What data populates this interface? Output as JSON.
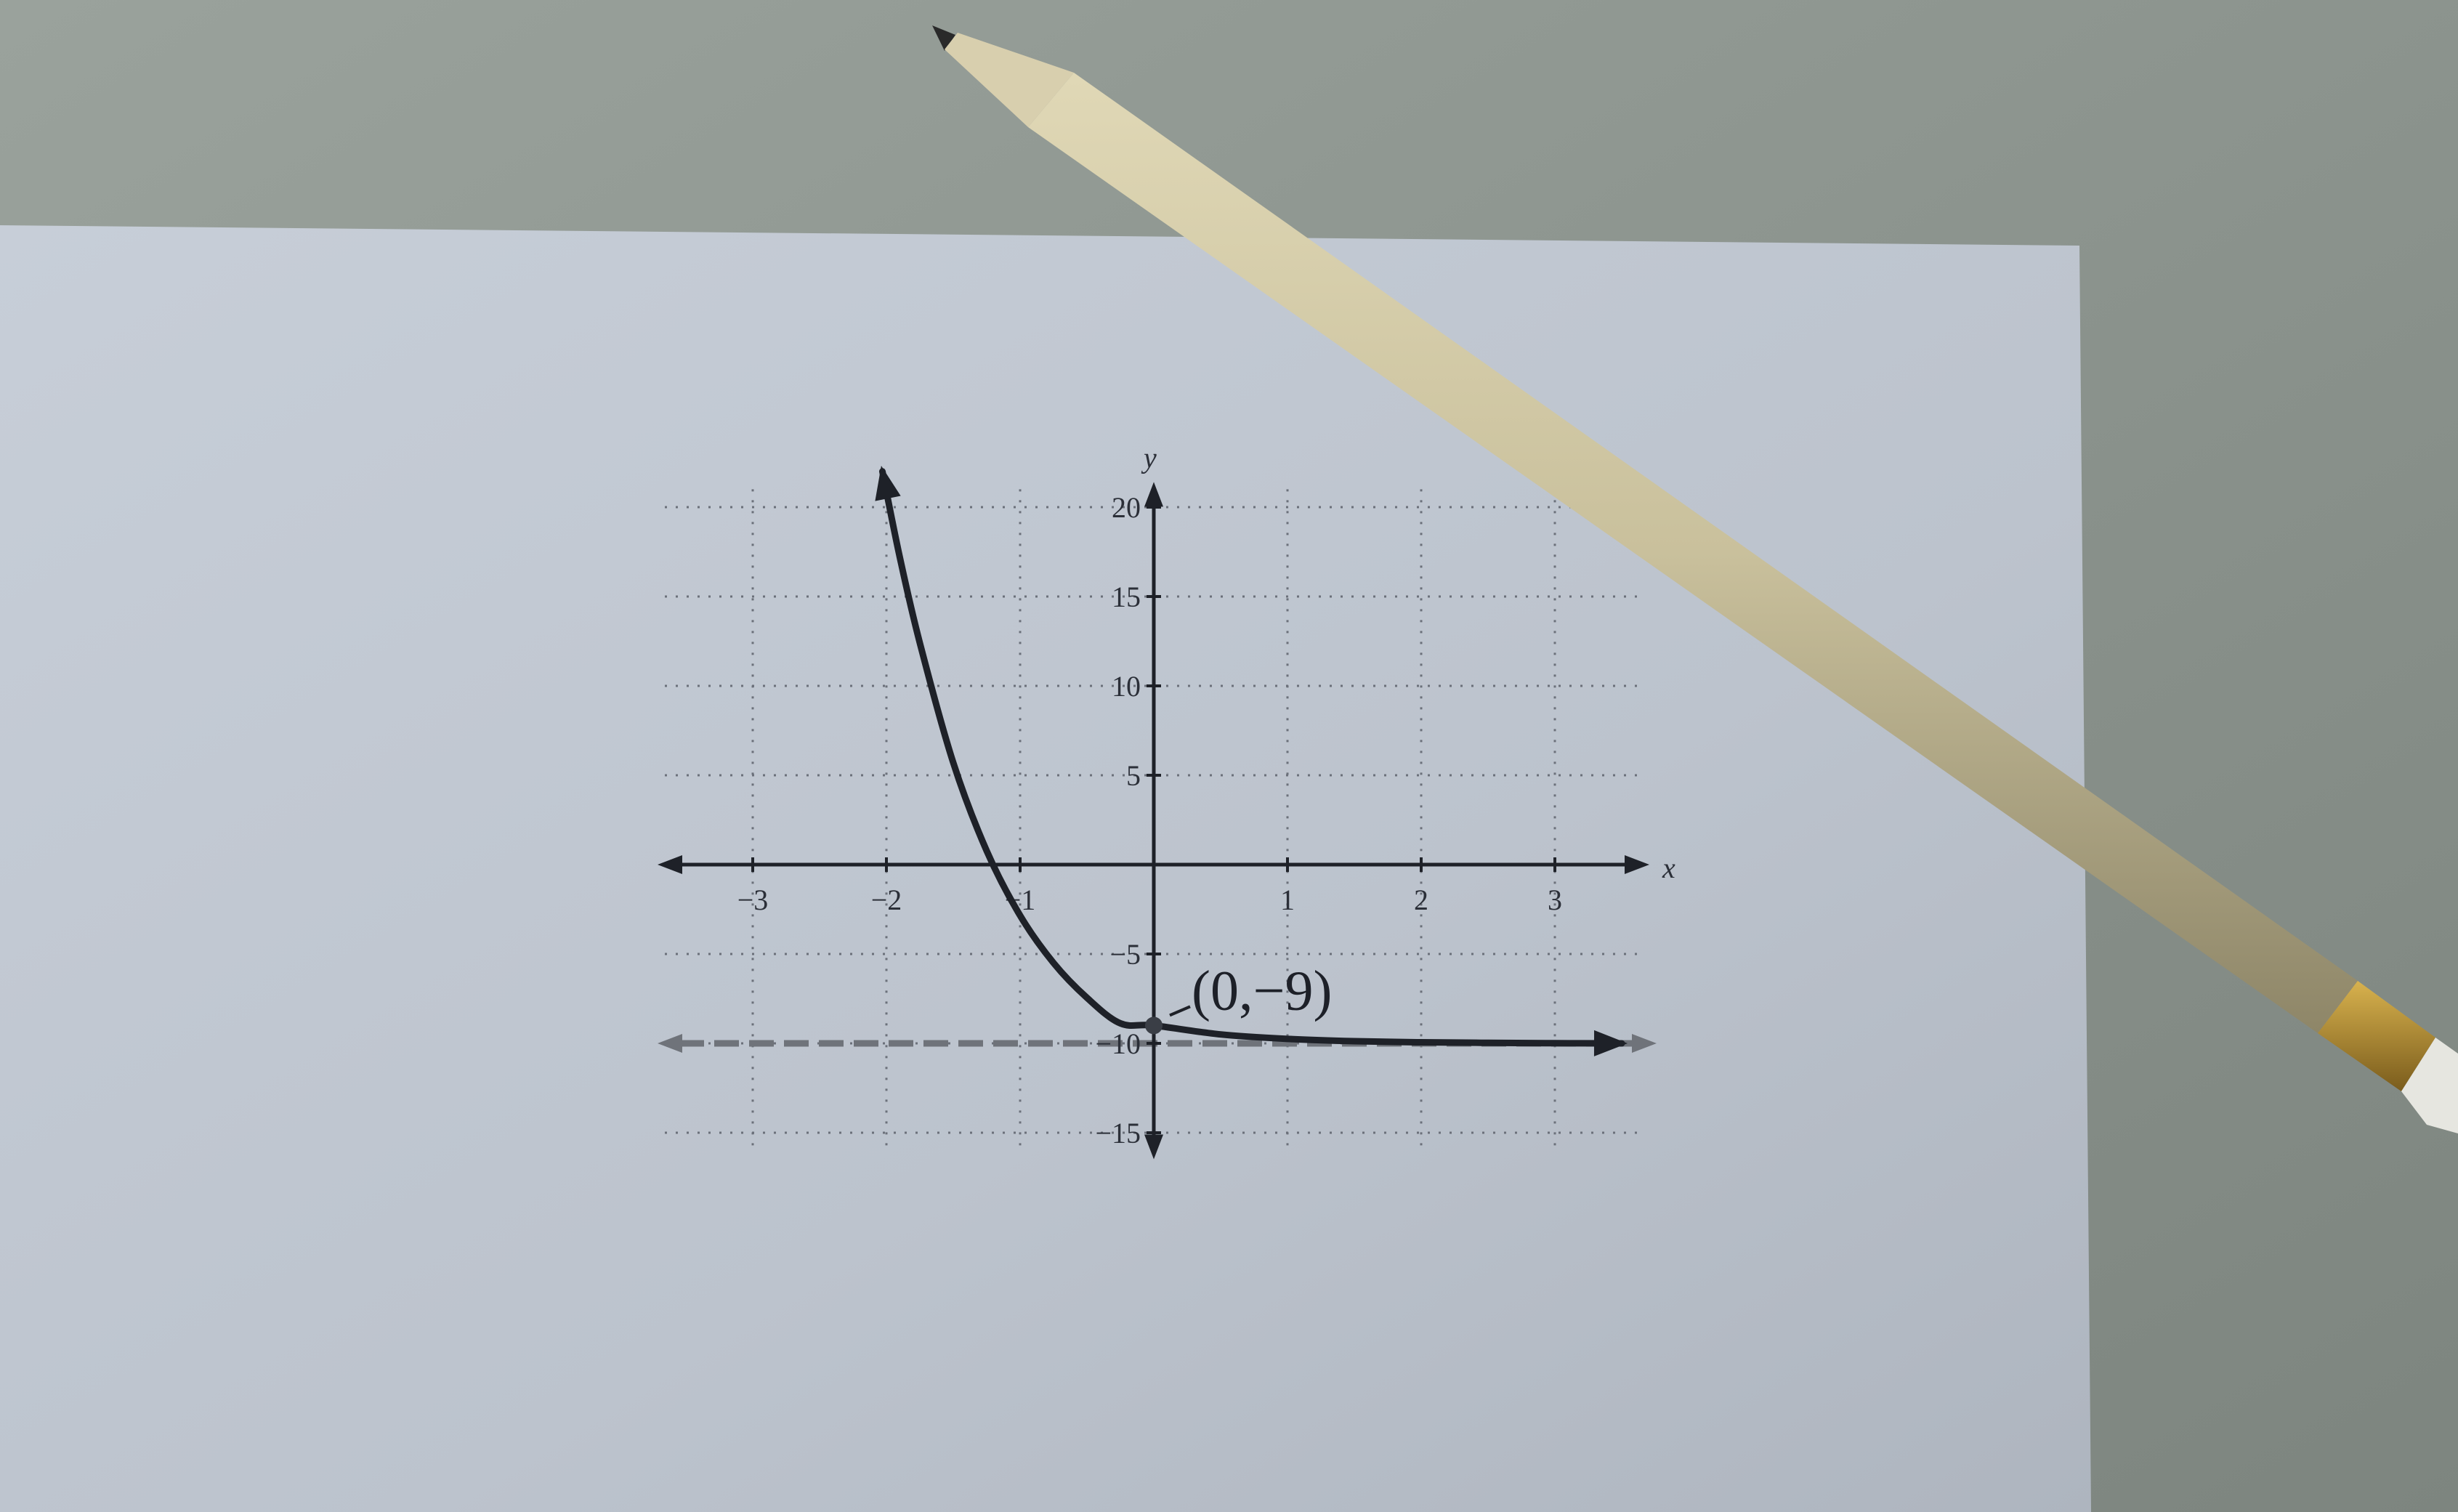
{
  "chart_data": {
    "type": "line",
    "title": "",
    "xlabel": "x",
    "ylabel": "y",
    "xlim": [
      -3.7,
      3.7
    ],
    "ylim": [
      -15,
      22
    ],
    "grid": true,
    "x_ticks": [
      {
        "value": -3,
        "label": "−3"
      },
      {
        "value": -2,
        "label": "−2"
      },
      {
        "value": -1,
        "label": "−1"
      },
      {
        "value": 1,
        "label": "1"
      },
      {
        "value": 2,
        "label": "2"
      },
      {
        "value": 3,
        "label": "3"
      }
    ],
    "y_ticks": [
      {
        "value": 20,
        "label": "20"
      },
      {
        "value": 15,
        "label": "15"
      },
      {
        "value": 10,
        "label": "10"
      },
      {
        "value": 5,
        "label": "5"
      },
      {
        "value": -5,
        "label": "−5"
      },
      {
        "value": -10,
        "label": "−10"
      },
      {
        "value": -15,
        "label": "−15"
      }
    ],
    "series": [
      {
        "x": [
          -2.03,
          -1.9,
          -1.75,
          -1.5,
          -1.25,
          -1,
          -0.75,
          -0.5,
          -0.25,
          0,
          0.5,
          1,
          1.5,
          2,
          2.5,
          3,
          3.5
        ],
        "y": [
          22.0,
          17.2,
          12.4,
          5.7,
          0.77,
          -2.85,
          -5.5,
          -7.45,
          -8.88,
          -9.0,
          -9.5,
          -9.75,
          -9.88,
          -9.94,
          -9.97,
          -9.99,
          -10.0
        ],
        "color": "#1e2128"
      }
    ],
    "asymptote": {
      "y": -10,
      "style": "dashed",
      "color": "#6f737a"
    },
    "points": [
      {
        "x": 0,
        "y": -9,
        "label": "(0,−9)"
      }
    ]
  },
  "colors": {
    "background_surface": "#8d9590",
    "paper": "#bcc3cd",
    "ink": "#1e2128",
    "pencil_wood": "#c9c09c",
    "ferrule": "#a6822c"
  }
}
